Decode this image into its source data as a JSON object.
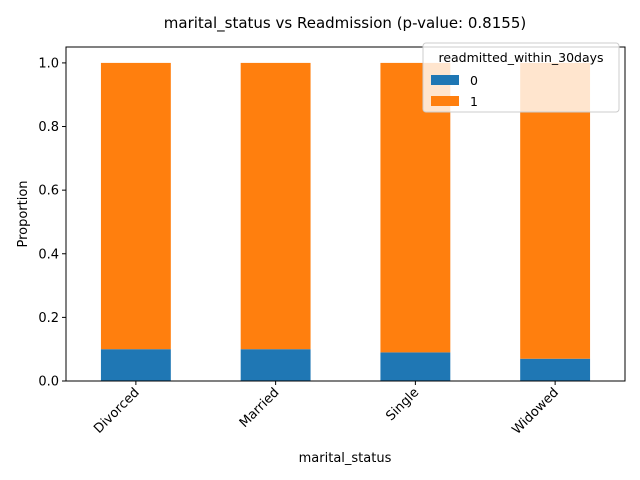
{
  "chart_data": {
    "type": "bar",
    "stacked": true,
    "title": "marital_status vs Readmission (p-value: 0.8155)",
    "xlabel": "marital_status",
    "ylabel": "Proportion",
    "categories": [
      "Divorced",
      "Married",
      "Single",
      "Widowed"
    ],
    "series": [
      {
        "name": "0",
        "color": "#1f77b4",
        "values": [
          0.1,
          0.1,
          0.09,
          0.07
        ]
      },
      {
        "name": "1",
        "color": "#ff7f0e",
        "values": [
          0.9,
          0.9,
          0.91,
          0.93
        ]
      }
    ],
    "ylim": [
      0,
      1.05
    ],
    "yticks": [
      "0.0",
      "0.2",
      "0.4",
      "0.6",
      "0.8",
      "1.0"
    ],
    "ytick_values": [
      0,
      0.2,
      0.4,
      0.6,
      0.8,
      1.0
    ],
    "legend": {
      "title": "readmitted_within_30days",
      "placement": "top-right"
    },
    "grid": false
  }
}
